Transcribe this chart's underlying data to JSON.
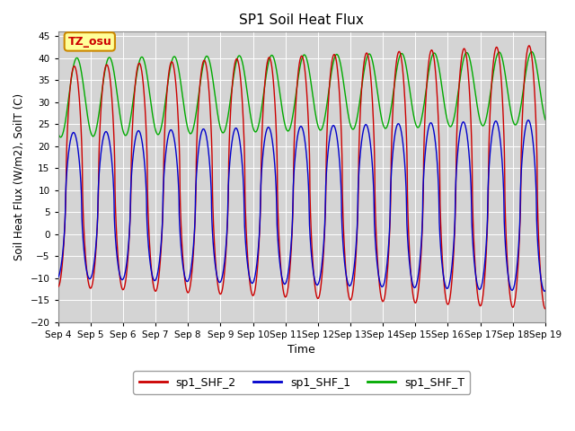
{
  "title": "SP1 Soil Heat Flux",
  "xlabel": "Time",
  "ylabel": "Soil Heat Flux (W/m2), SoilT (C)",
  "ylim": [
    -20,
    46
  ],
  "yticks": [
    -20,
    -15,
    -10,
    -5,
    0,
    5,
    10,
    15,
    20,
    25,
    30,
    35,
    40,
    45
  ],
  "xtick_labels": [
    "Sep 4",
    "Sep 5",
    "Sep 6",
    "Sep 7",
    "Sep 8",
    "Sep 9",
    "Sep 10",
    "Sep 11",
    "Sep 12",
    "Sep 13",
    "Sep 14",
    "Sep 15",
    "Sep 16",
    "Sep 17",
    "Sep 18",
    "Sep 19"
  ],
  "color_red": "#cc0000",
  "color_blue": "#0000cc",
  "color_green": "#00aa00",
  "bg_color": "#d4d4d4",
  "annotation_text": "TZ_osu",
  "annotation_facecolor": "#ffff99",
  "annotation_edgecolor": "#cc8800",
  "annotation_textcolor": "#cc0000",
  "legend_labels": [
    "sp1_SHF_2",
    "sp1_SHF_1",
    "sp1_SHF_T"
  ],
  "legend_colors": [
    "#cc0000",
    "#0000cc",
    "#00aa00"
  ],
  "num_days": 15,
  "points_per_day": 500
}
